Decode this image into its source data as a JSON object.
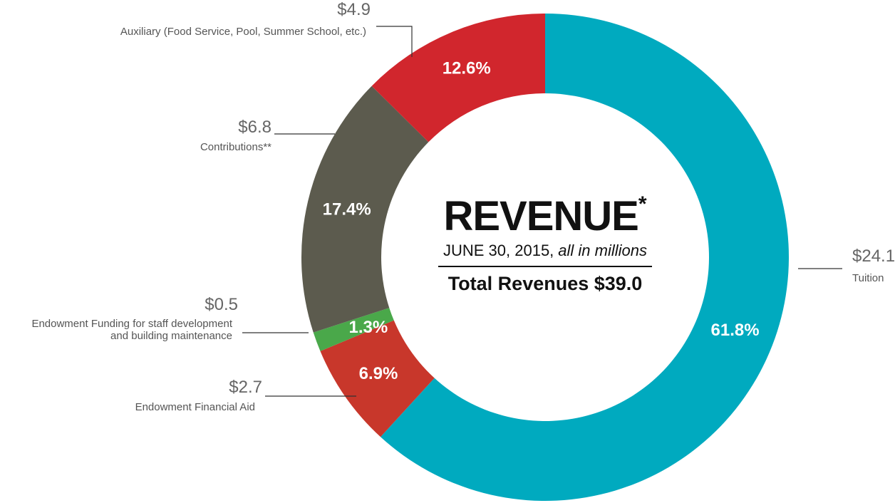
{
  "chart_data": {
    "type": "pie",
    "title": "REVENUE",
    "title_marker": "*",
    "date": "JUNE 30, 2015,",
    "unit_note": "all in millions",
    "total": "Total Revenues $39.0",
    "categories": [
      "Tuition",
      "Endowment Financial Aid",
      "Endowment Funding for staff development\nand building maintenance",
      "Contributions**",
      "Auxiliary (Food Service, Pool, Summer School, etc.)"
    ],
    "values": [
      61.8,
      6.9,
      1.3,
      17.4,
      12.6
    ],
    "value_labels": [
      "61.8%",
      "6.9%",
      "1.3%",
      "17.4%",
      "12.6%"
    ],
    "amount_labels": [
      "$24.1",
      "$2.7",
      "$0.5",
      "$6.8",
      "$4.9"
    ],
    "colors": [
      "#00aabf",
      "#c8372b",
      "#4aa84a",
      "#5c5b4e",
      "#d1262d"
    ],
    "donut": true
  }
}
